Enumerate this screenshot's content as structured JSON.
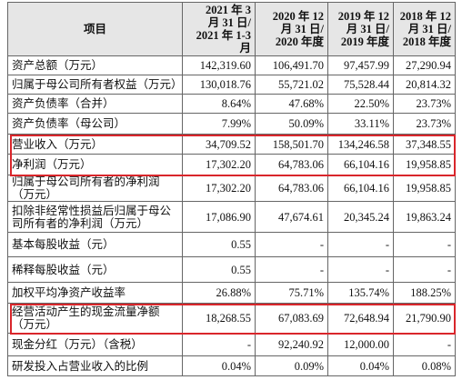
{
  "table": {
    "header": [
      [
        "项目"
      ],
      [
        "2021 年 3",
        "月 31 日/",
        "2021 年 1-3 月"
      ],
      [
        "2020 年 12",
        "月 31 日/",
        "2020 年度"
      ],
      [
        "2019 年 12",
        "月 31 日/",
        "2019 年度"
      ],
      [
        "2018 年 12",
        "月 31 日/",
        "2018 年度"
      ]
    ],
    "rows": [
      [
        "资产总额（万元）",
        "142,319.60",
        "106,491.70",
        "97,457.99",
        "27,290.94"
      ],
      [
        "归属于母公司所有者权益（万元）",
        "130,018.76",
        "55,721.02",
        "75,528.44",
        "20,814.32"
      ],
      [
        "资产负债率（合并）",
        "8.64%",
        "47.68%",
        "22.50%",
        "23.73%"
      ],
      [
        "资产负债率（母公司）",
        "7.99%",
        "50.09%",
        "33.11%",
        "23.73%"
      ],
      [
        "营业收入（万元）",
        "34,709.52",
        "158,501.70",
        "134,246.58",
        "37,348.55"
      ],
      [
        "净利润（万元）",
        "17,302.20",
        "64,783.06",
        "66,104.16",
        "19,958.85"
      ],
      [
        "归属于母公司所有者的净利润（万元）",
        "17,302.20",
        "64,783.06",
        "66,104.16",
        "19,958.85"
      ],
      [
        "扣除非经常性损益后归属于母公司所有者的净利润（万元）",
        "17,086.90",
        "47,674.61",
        "20,345.24",
        "19,863.24"
      ],
      [
        "基本每股收益（元）",
        "0.55",
        "-",
        "-",
        "-"
      ],
      [
        "稀释每股收益（元）",
        "0.55",
        "-",
        "-",
        "-"
      ],
      [
        "加权平均净资产收益率",
        "26.88%",
        "75.71%",
        "135.74%",
        "188.25%"
      ],
      [
        "经营活动产生的现金流量净额（万元）",
        "18,268.55",
        "67,083.69",
        "72,648.94",
        "21,790.90"
      ],
      [
        "现金分红（万元）（含税）",
        "-",
        "92,240.92",
        "12,000.00",
        "-"
      ],
      [
        "研发投入占营业收入的比例",
        "0.04%",
        "0.09%",
        "0.04%",
        "0.08%"
      ]
    ]
  }
}
